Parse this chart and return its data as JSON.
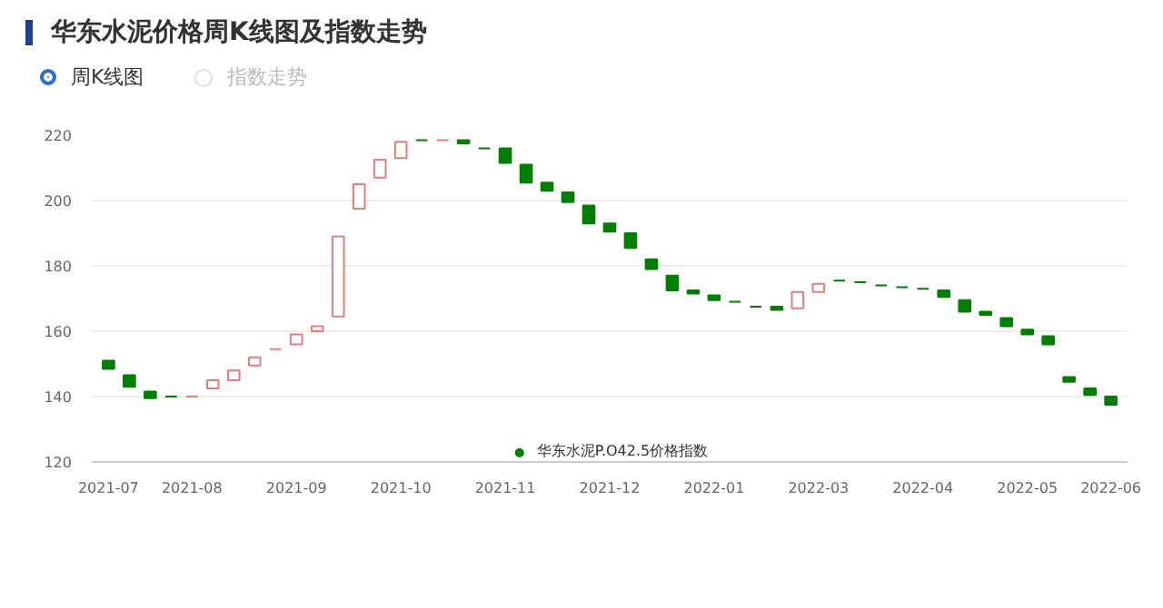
{
  "chart_data": {
    "type": "candlestick",
    "title": "华东水泥价格周K线图及指数走势",
    "annotations": [
      "周K线图",
      "指数走势"
    ],
    "categories": [
      "2021-07",
      null,
      null,
      null,
      "2021-08",
      null,
      null,
      null,
      null,
      "2021-09",
      null,
      null,
      null,
      null,
      "2021-10",
      null,
      null,
      null,
      null,
      "2021-11",
      null,
      null,
      null,
      null,
      "2021-12",
      null,
      null,
      null,
      null,
      "2022-01",
      null,
      null,
      null,
      null,
      "2022-03",
      null,
      null,
      null,
      null,
      "2022-04",
      null,
      null,
      null,
      null,
      "2022-05",
      null,
      null,
      null,
      "2022-06"
    ],
    "ylim": [
      120,
      220
    ],
    "yticks": [
      120,
      140,
      160,
      180,
      200,
      220
    ],
    "grid": "y",
    "legend": "bottom",
    "series": [
      {
        "name": "华东水泥P.O42.5价格指数",
        "color": "#007f00",
        "ohlc": [
          [
            151,
            151,
            148.5,
            148.5
          ],
          [
            146.5,
            146.5,
            143,
            143
          ],
          [
            141.5,
            141.5,
            139.5,
            139.5
          ],
          [
            140,
            140,
            140,
            140
          ],
          [
            140,
            140,
            140,
            140
          ],
          [
            142.5,
            145,
            142.5,
            145
          ],
          [
            145,
            148,
            145,
            148
          ],
          [
            149.5,
            152,
            149.5,
            152
          ],
          [
            154.5,
            154.5,
            154.5,
            154.5
          ],
          [
            156,
            159,
            156,
            159
          ],
          [
            160,
            161.5,
            160,
            161.5
          ],
          [
            164.5,
            189,
            164.5,
            189
          ],
          [
            197.5,
            205,
            197.5,
            205
          ],
          [
            207,
            212.5,
            207,
            212.5
          ],
          [
            213,
            218,
            213,
            218
          ],
          [
            218.5,
            218.5,
            218.5,
            218.5
          ],
          [
            218.5,
            218.5,
            218.5,
            218.5
          ],
          [
            218.5,
            218.5,
            217.5,
            217.5
          ],
          [
            216,
            216,
            216,
            216
          ],
          [
            216,
            216,
            211.5,
            211.5
          ],
          [
            211,
            211,
            205.5,
            205.5
          ],
          [
            205.5,
            205.5,
            203,
            203
          ],
          [
            202.5,
            202.5,
            199.5,
            199.5
          ],
          [
            198.5,
            198.5,
            193,
            193
          ],
          [
            193,
            193,
            190.5,
            190.5
          ],
          [
            190,
            190,
            185.5,
            185.5
          ],
          [
            182,
            182,
            179,
            179
          ],
          [
            177,
            177,
            172.5,
            172.5
          ],
          [
            172.5,
            172.5,
            171.5,
            171.5
          ],
          [
            171,
            171,
            169.5,
            169.5
          ],
          [
            169,
            169,
            169,
            169
          ],
          [
            167.5,
            167.5,
            167.5,
            167.5
          ],
          [
            167.5,
            167.5,
            166.5,
            166.5
          ],
          [
            167,
            172,
            167,
            172
          ],
          [
            172,
            174.5,
            172,
            174.5
          ],
          [
            175.5,
            175.5,
            175.5,
            175.5
          ],
          [
            175,
            175,
            175,
            175
          ],
          [
            174,
            174,
            174,
            174
          ],
          [
            173.5,
            173.5,
            173.5,
            173.5
          ],
          [
            173,
            173,
            173,
            173
          ],
          [
            172.5,
            172.5,
            170.5,
            170.5
          ],
          [
            169.5,
            169.5,
            166,
            166
          ],
          [
            166,
            166,
            165,
            165
          ],
          [
            164,
            164,
            161.5,
            161.5
          ],
          [
            160.5,
            160.5,
            159,
            159
          ],
          [
            158.5,
            158.5,
            156,
            156
          ],
          [
            146,
            146,
            144.5,
            144.5
          ],
          [
            142.5,
            142.5,
            140.5,
            140.5
          ],
          [
            140,
            140,
            137.5,
            137.5
          ]
        ],
        "colors": [
          "#007f00",
          "#007f00",
          "#007f00",
          "#007f00",
          "#eb7a7a",
          "#eb7a7a",
          "#eb7a7a",
          "#eb7a7a",
          "#eb7a7a",
          "#eb7a7a",
          "#eb7a7a",
          "#eb7a7a",
          "#eb7a7a",
          "#eb7a7a",
          "#eb7a7a",
          "#007f00",
          "#eb7a7a",
          "#007f00",
          "#007f00",
          "#007f00",
          "#007f00",
          "#007f00",
          "#007f00",
          "#007f00",
          "#007f00",
          "#007f00",
          "#007f00",
          "#007f00",
          "#007f00",
          "#007f00",
          "#007f00",
          "#007f00",
          "#007f00",
          "#eb7a7a",
          "#eb7a7a",
          "#007f00",
          "#007f00",
          "#007f00",
          "#007f00",
          "#007f00",
          "#007f00",
          "#007f00",
          "#007f00",
          "#007f00",
          "#007f00",
          "#007f00",
          "#007f00",
          "#007f00",
          "#007f00"
        ]
      }
    ]
  }
}
